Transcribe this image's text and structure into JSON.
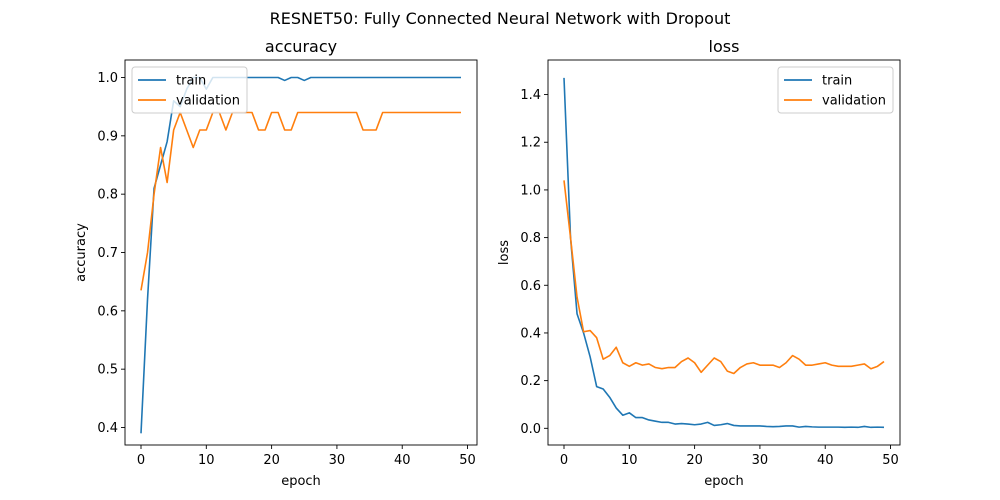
{
  "figure": {
    "title": "RESNET50: Fully Connected Neural Network with Dropout"
  },
  "colors": {
    "train": "#1f77b4",
    "validation": "#ff7f0e"
  },
  "chart_data": [
    {
      "type": "line",
      "title": "accuracy",
      "xlabel": "epoch",
      "ylabel": "accuracy",
      "xlim": [
        -2.45,
        51.45
      ],
      "ylim": [
        0.37,
        1.03
      ],
      "xticks": [
        0,
        10,
        20,
        30,
        40,
        50
      ],
      "xtick_labels": [
        "0",
        "10",
        "20",
        "30",
        "40",
        "50"
      ],
      "yticks": [
        0.4,
        0.5,
        0.6,
        0.7,
        0.8,
        0.9,
        1.0
      ],
      "ytick_labels": [
        "0.4",
        "0.5",
        "0.6",
        "0.7",
        "0.8",
        "0.9",
        "1.0"
      ],
      "grid": false,
      "legend": "upper-left",
      "x": [
        0,
        1,
        2,
        3,
        4,
        5,
        6,
        7,
        8,
        9,
        10,
        11,
        12,
        13,
        14,
        15,
        16,
        17,
        18,
        19,
        20,
        21,
        22,
        23,
        24,
        25,
        26,
        27,
        28,
        29,
        30,
        31,
        32,
        33,
        34,
        35,
        36,
        37,
        38,
        39,
        40,
        41,
        42,
        43,
        44,
        45,
        46,
        47,
        48,
        49
      ],
      "series": [
        {
          "name": "train",
          "values": [
            0.39,
            0.62,
            0.81,
            0.85,
            0.89,
            0.96,
            0.95,
            0.98,
            1.0,
            1.0,
            0.98,
            1.0,
            1.0,
            1.0,
            1.0,
            1.0,
            1.0,
            1.0,
            1.0,
            1.0,
            1.0,
            1.0,
            0.995,
            1.0,
            1.0,
            0.995,
            1.0,
            1.0,
            1.0,
            1.0,
            1.0,
            1.0,
            1.0,
            1.0,
            1.0,
            1.0,
            1.0,
            1.0,
            1.0,
            1.0,
            1.0,
            1.0,
            1.0,
            1.0,
            1.0,
            1.0,
            1.0,
            1.0,
            1.0,
            1.0
          ]
        },
        {
          "name": "validation",
          "values": [
            0.635,
            0.7,
            0.8,
            0.88,
            0.82,
            0.91,
            0.94,
            0.91,
            0.88,
            0.91,
            0.91,
            0.94,
            0.94,
            0.91,
            0.94,
            0.94,
            0.94,
            0.94,
            0.91,
            0.91,
            0.94,
            0.94,
            0.91,
            0.91,
            0.94,
            0.94,
            0.94,
            0.94,
            0.94,
            0.94,
            0.94,
            0.94,
            0.94,
            0.94,
            0.91,
            0.91,
            0.91,
            0.94,
            0.94,
            0.94,
            0.94,
            0.94,
            0.94,
            0.94,
            0.94,
            0.94,
            0.94,
            0.94,
            0.94,
            0.94
          ]
        }
      ]
    },
    {
      "type": "line",
      "title": "loss",
      "xlabel": "epoch",
      "ylabel": "loss",
      "xlim": [
        -2.45,
        51.45
      ],
      "ylim": [
        -0.07,
        1.545
      ],
      "xticks": [
        0,
        10,
        20,
        30,
        40,
        50
      ],
      "xtick_labels": [
        "0",
        "10",
        "20",
        "30",
        "40",
        "50"
      ],
      "yticks": [
        0.0,
        0.2,
        0.4,
        0.6,
        0.8,
        1.0,
        1.2,
        1.4
      ],
      "ytick_labels": [
        "0.0",
        "0.2",
        "0.4",
        "0.6",
        "0.8",
        "1.0",
        "1.2",
        "1.4"
      ],
      "grid": false,
      "legend": "upper-right",
      "x": [
        0,
        1,
        2,
        3,
        4,
        5,
        6,
        7,
        8,
        9,
        10,
        11,
        12,
        13,
        14,
        15,
        16,
        17,
        18,
        19,
        20,
        21,
        22,
        23,
        24,
        25,
        26,
        27,
        28,
        29,
        30,
        31,
        32,
        33,
        34,
        35,
        36,
        37,
        38,
        39,
        40,
        41,
        42,
        43,
        44,
        45,
        46,
        47,
        48,
        49
      ],
      "series": [
        {
          "name": "train",
          "values": [
            1.47,
            0.8,
            0.48,
            0.4,
            0.3,
            0.175,
            0.165,
            0.13,
            0.085,
            0.055,
            0.065,
            0.045,
            0.045,
            0.035,
            0.03,
            0.025,
            0.025,
            0.018,
            0.02,
            0.018,
            0.015,
            0.018,
            0.025,
            0.012,
            0.015,
            0.02,
            0.012,
            0.01,
            0.01,
            0.01,
            0.01,
            0.008,
            0.007,
            0.008,
            0.01,
            0.01,
            0.005,
            0.008,
            0.006,
            0.005,
            0.005,
            0.005,
            0.005,
            0.004,
            0.005,
            0.004,
            0.008,
            0.004,
            0.005,
            0.004
          ]
        },
        {
          "name": "validation",
          "values": [
            1.04,
            0.8,
            0.55,
            0.405,
            0.41,
            0.38,
            0.29,
            0.305,
            0.34,
            0.275,
            0.26,
            0.275,
            0.265,
            0.27,
            0.255,
            0.25,
            0.255,
            0.255,
            0.28,
            0.295,
            0.275,
            0.235,
            0.265,
            0.295,
            0.28,
            0.24,
            0.23,
            0.255,
            0.27,
            0.275,
            0.265,
            0.265,
            0.265,
            0.255,
            0.275,
            0.305,
            0.29,
            0.265,
            0.265,
            0.27,
            0.275,
            0.265,
            0.26,
            0.26,
            0.26,
            0.265,
            0.27,
            0.25,
            0.26,
            0.28
          ]
        }
      ]
    }
  ]
}
